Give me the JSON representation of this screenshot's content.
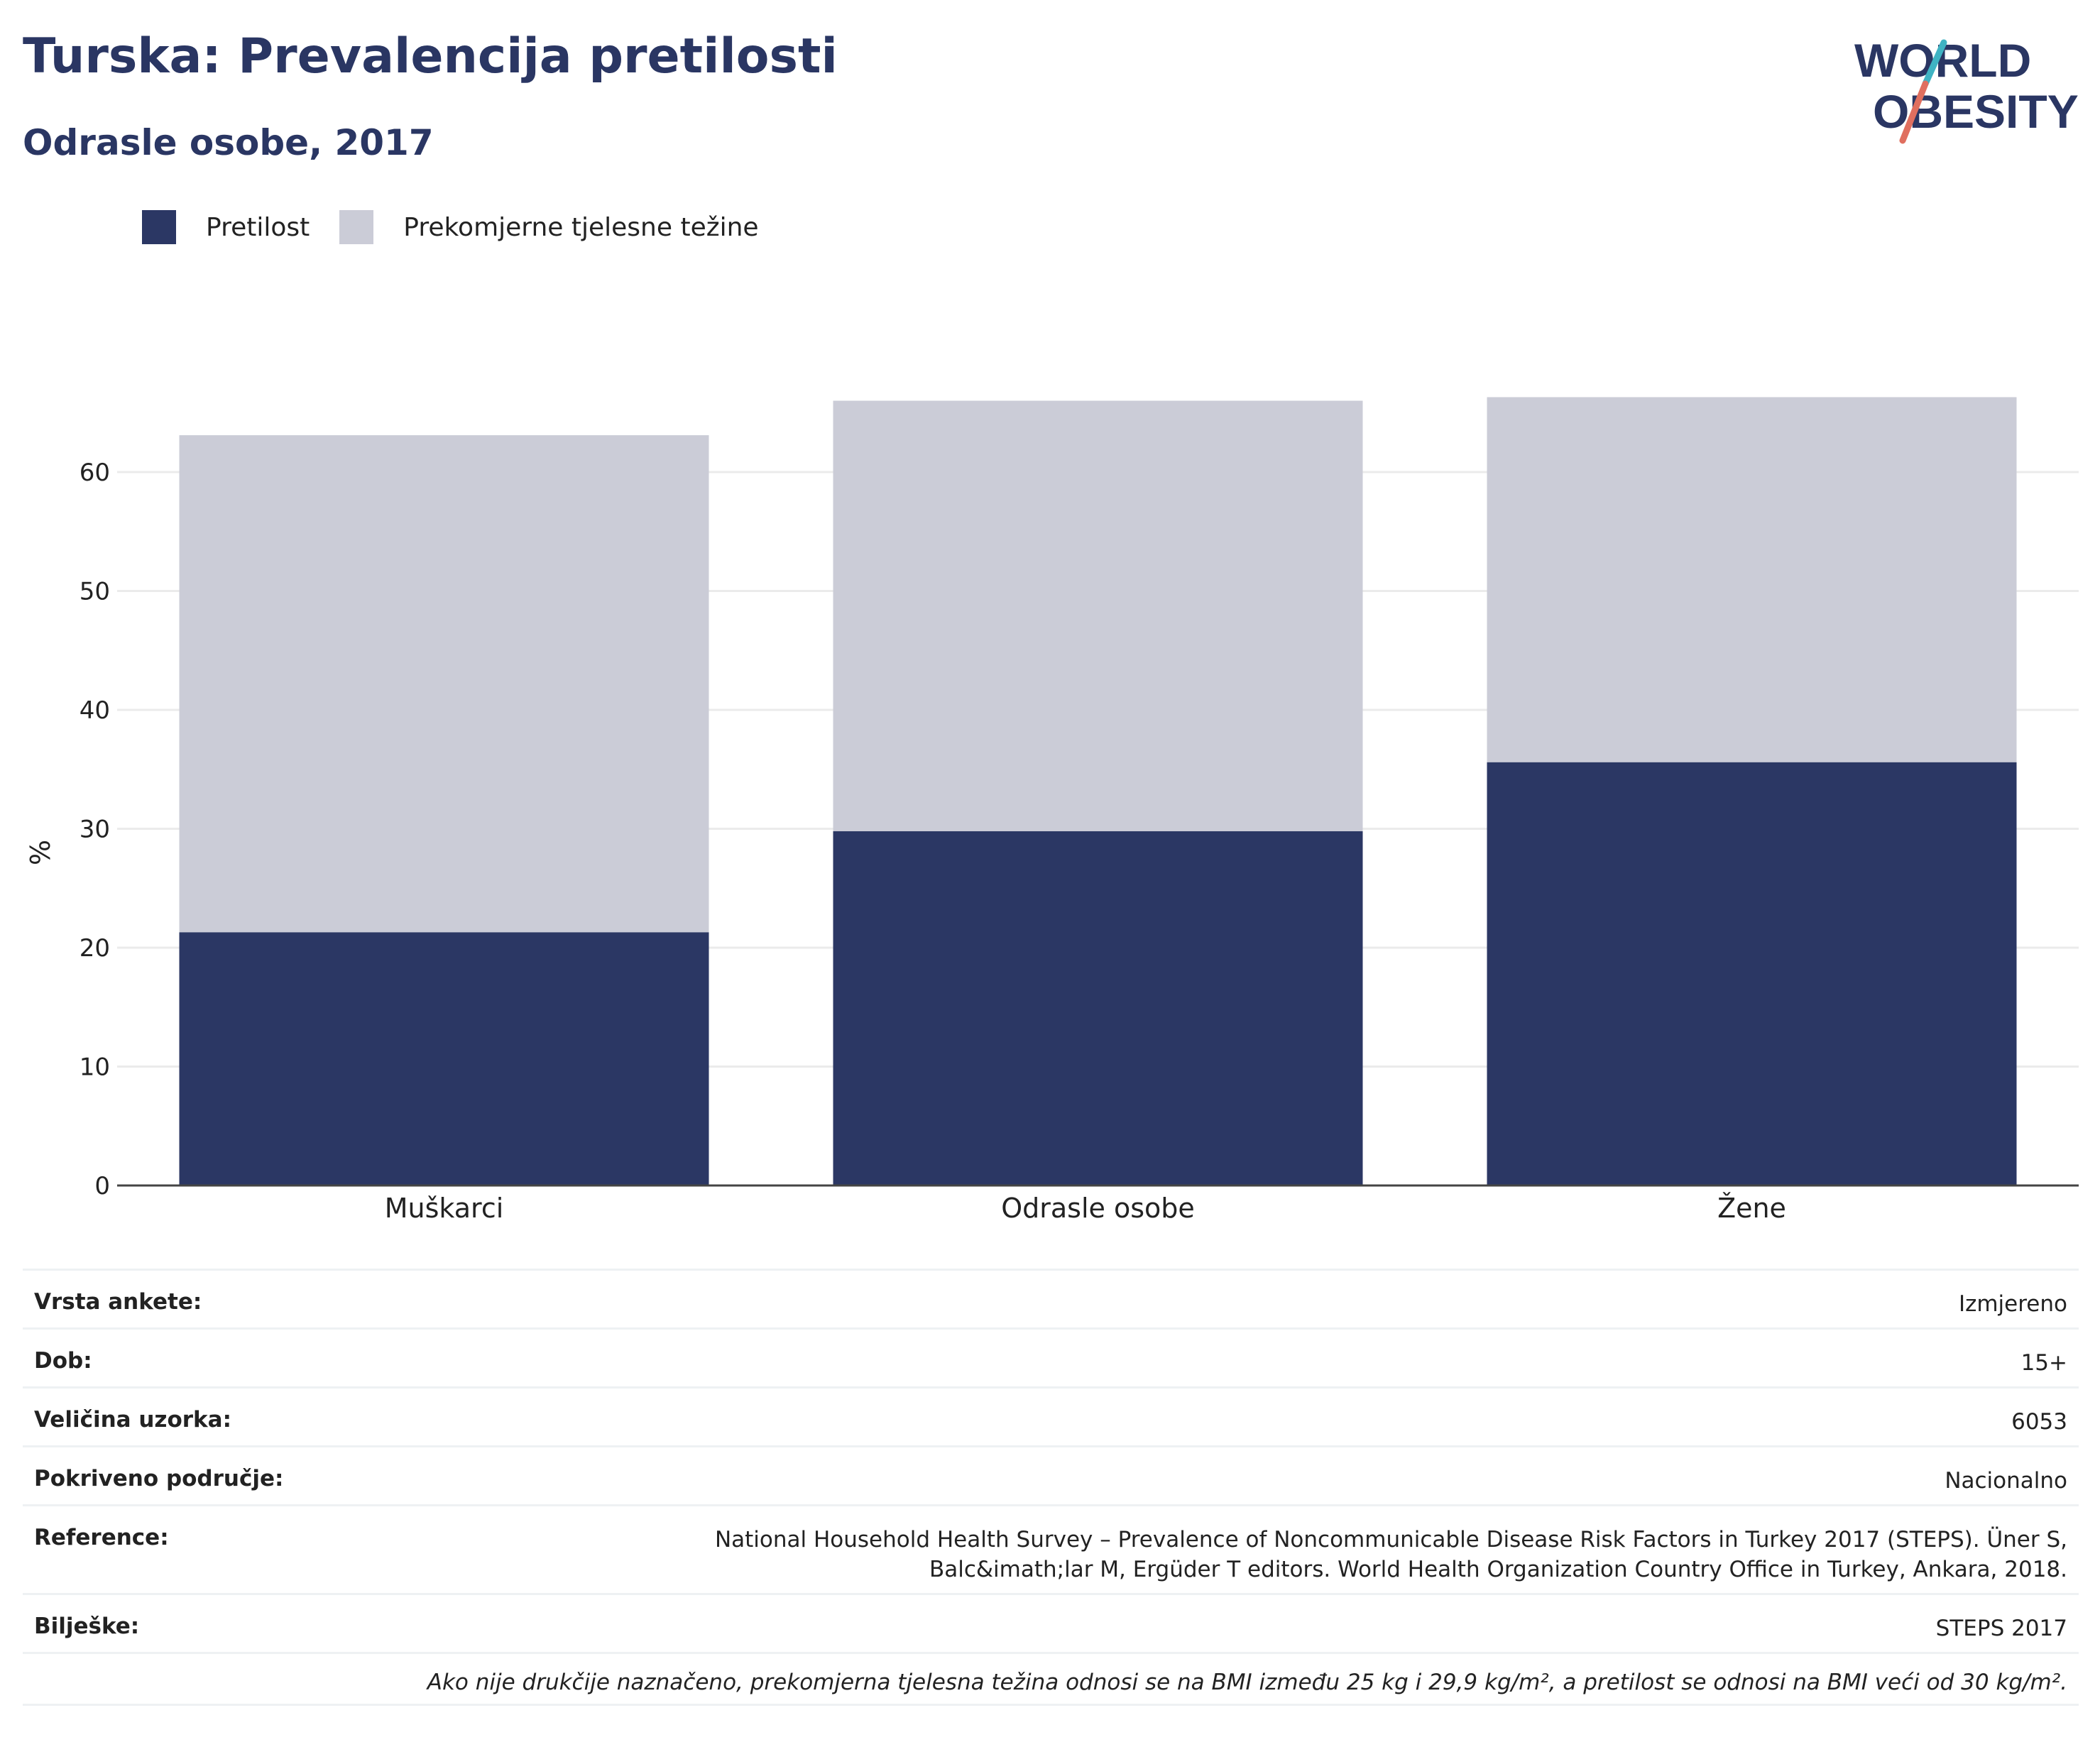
{
  "header": {
    "title": "Turska: Prevalencija pretilosti",
    "subtitle": "Odrasle osobe, 2017"
  },
  "logo": {
    "line1": "WORLD",
    "line2": "OBESITY"
  },
  "colors": {
    "obesity": "#2b3764",
    "overweight": "#cbccd7",
    "title": "#2a3663",
    "logo_teal": "#3fb3c3",
    "logo_coral": "#e06f5f"
  },
  "legend": {
    "items": [
      {
        "label": "Pretilost",
        "color": "#2b3764"
      },
      {
        "label": "Prekomjerne tjelesne težine",
        "color": "#cbccd7"
      }
    ]
  },
  "chart_data": {
    "type": "bar",
    "stacked": true,
    "categories": [
      "Muškarci",
      "Odrasle osobe",
      "Žene"
    ],
    "series": [
      {
        "name": "Pretilost",
        "values": [
          21.3,
          29.8,
          35.6
        ]
      },
      {
        "name": "Prekomjerne tjelesne težine",
        "values": [
          41.8,
          36.2,
          30.7
        ]
      }
    ],
    "totals": [
      63.1,
      66.0,
      66.3
    ],
    "ylabel": "%",
    "ylim": [
      0,
      66
    ],
    "yticks": [
      0,
      10,
      20,
      30,
      40,
      50,
      60
    ],
    "grid": true,
    "legend_position": "top-left"
  },
  "info": {
    "rows": [
      {
        "label": "Vrsta ankete:",
        "value": "Izmjereno"
      },
      {
        "label": "Dob:",
        "value": "15+"
      },
      {
        "label": "Veličina uzorka:",
        "value": "6053"
      },
      {
        "label": "Pokriveno područje:",
        "value": "Nacionalno"
      },
      {
        "label": "Reference:",
        "value_line1": "National Household Health Survey – Prevalence of Noncommunicable Disease Risk Factors in Turkey 2017 (STEPS). Üner S,",
        "value_line2": "Balc&imath;lar M, Ergüder T editors. World Health Organization Country Office in Turkey, Ankara, 2018."
      },
      {
        "label": "Bilješke:",
        "value": "STEPS 2017"
      }
    ],
    "note": "Ako nije drukčije naznačeno, prekomjerna tjelesna težina odnosi se na BMI između 25 kg i 29,9 kg/m², a pretilost se odnosi na BMI veći od 30 kg/m²."
  }
}
